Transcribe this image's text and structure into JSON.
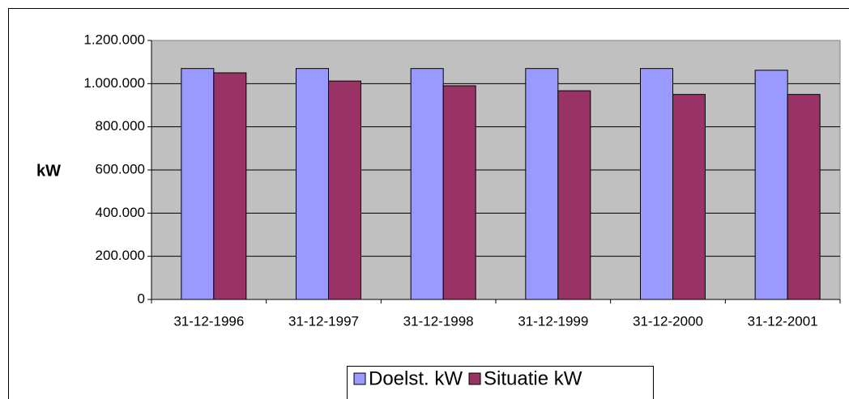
{
  "chart_data": {
    "type": "bar",
    "y_label": "kW",
    "categories": [
      "31-12-1996",
      "31-12-1997",
      "31-12-1998",
      "31-12-1999",
      "31-12-2000",
      "31-12-2001"
    ],
    "series": [
      {
        "name": "Doelst. kW",
        "color": "#9999ff",
        "values": [
          1070000,
          1070000,
          1070000,
          1070000,
          1070000,
          1062000
        ]
      },
      {
        "name": "Situatie kW",
        "color": "#993366",
        "values": [
          1050000,
          1012000,
          990000,
          967000,
          950000,
          950000
        ]
      }
    ],
    "ylim": [
      0,
      1200000
    ],
    "yticks": [
      0,
      {
        "value": 200000,
        "label": "200.000"
      },
      {
        "value": 400000,
        "label": "400.000"
      },
      {
        "value": 600000,
        "label": "600.000"
      },
      {
        "value": 800000,
        "label": "800.000"
      },
      {
        "value": 1000000,
        "label": "1.000.000"
      },
      {
        "value": 1200000,
        "label": "1.200.000"
      }
    ],
    "grid": true
  }
}
